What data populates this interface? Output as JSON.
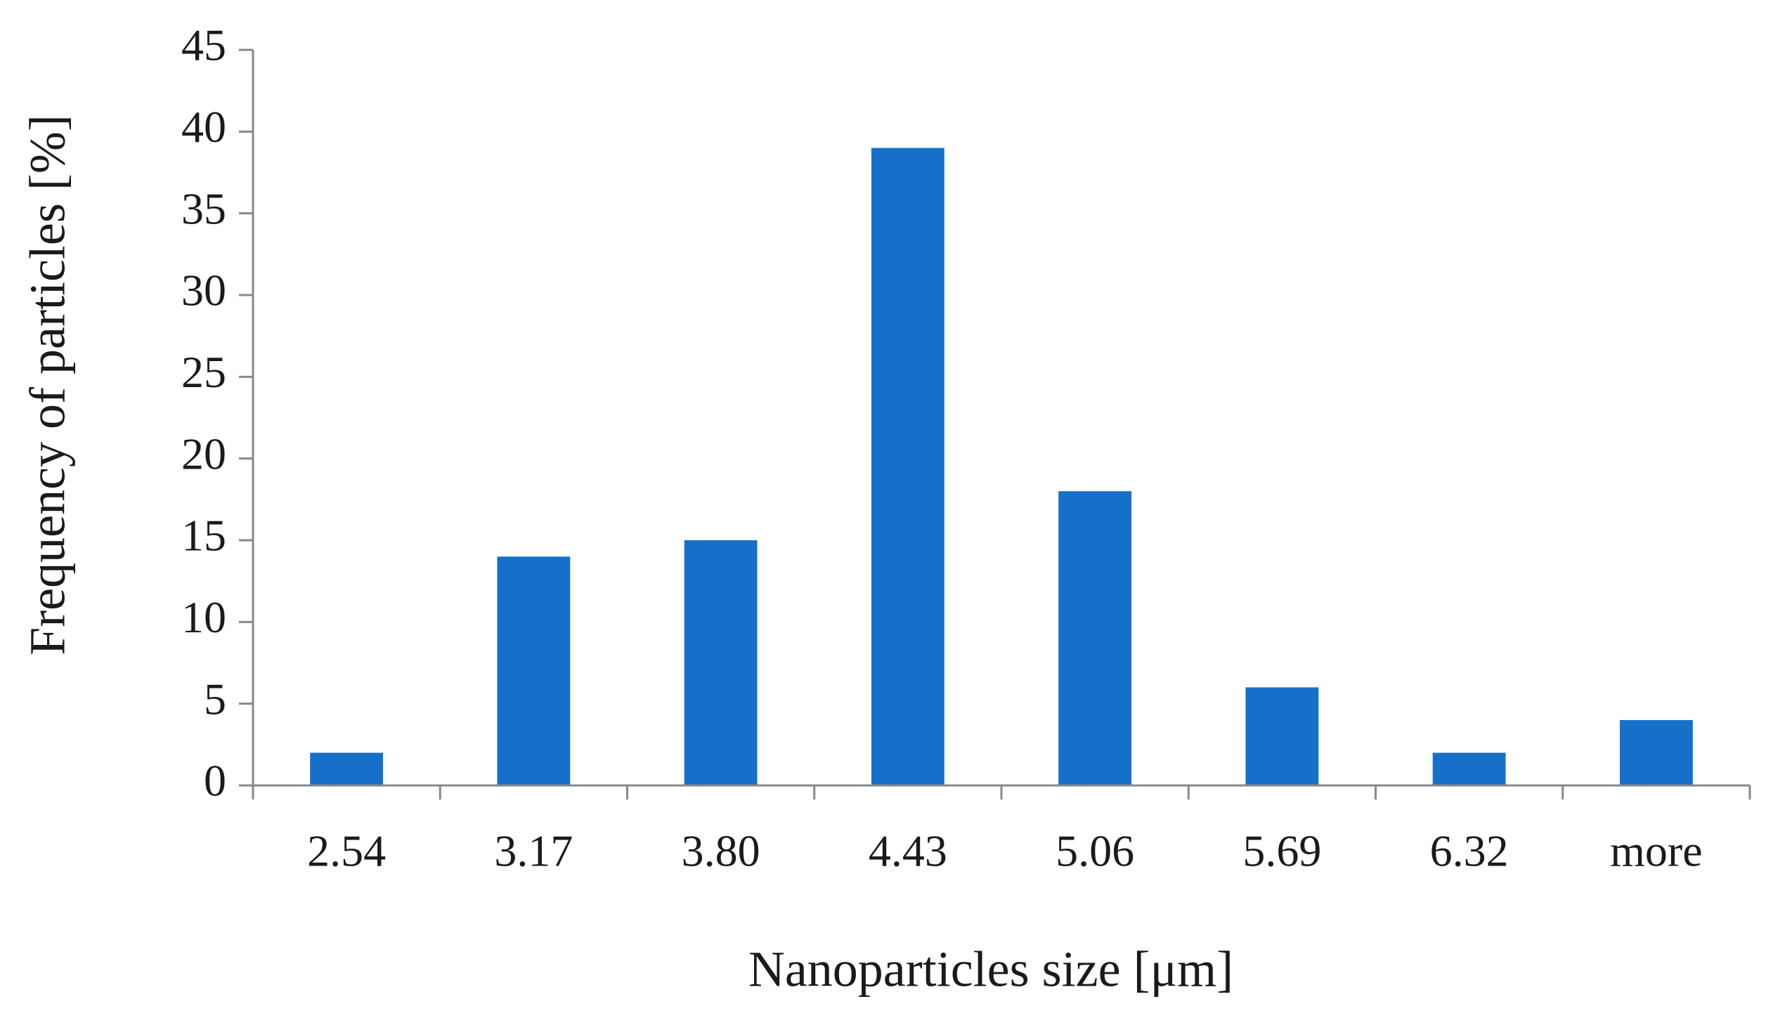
{
  "chart_data": {
    "type": "bar",
    "title": "",
    "xlabel": "Nanoparticles size [μm]",
    "ylabel": "Frequency of particles [%]",
    "categories": [
      "2.54",
      "3.17",
      "3.80",
      "4.43",
      "5.06",
      "5.69",
      "6.32",
      "more"
    ],
    "values": [
      2,
      14,
      15,
      39,
      18,
      6,
      2,
      4
    ],
    "ylim": [
      0,
      45
    ],
    "yticks": [
      "0",
      "5",
      "10",
      "15",
      "20",
      "25",
      "30",
      "35",
      "40",
      "45"
    ],
    "grid": false,
    "legend": "none",
    "bar_color": "#1670c9",
    "axis_color": "#888888"
  }
}
